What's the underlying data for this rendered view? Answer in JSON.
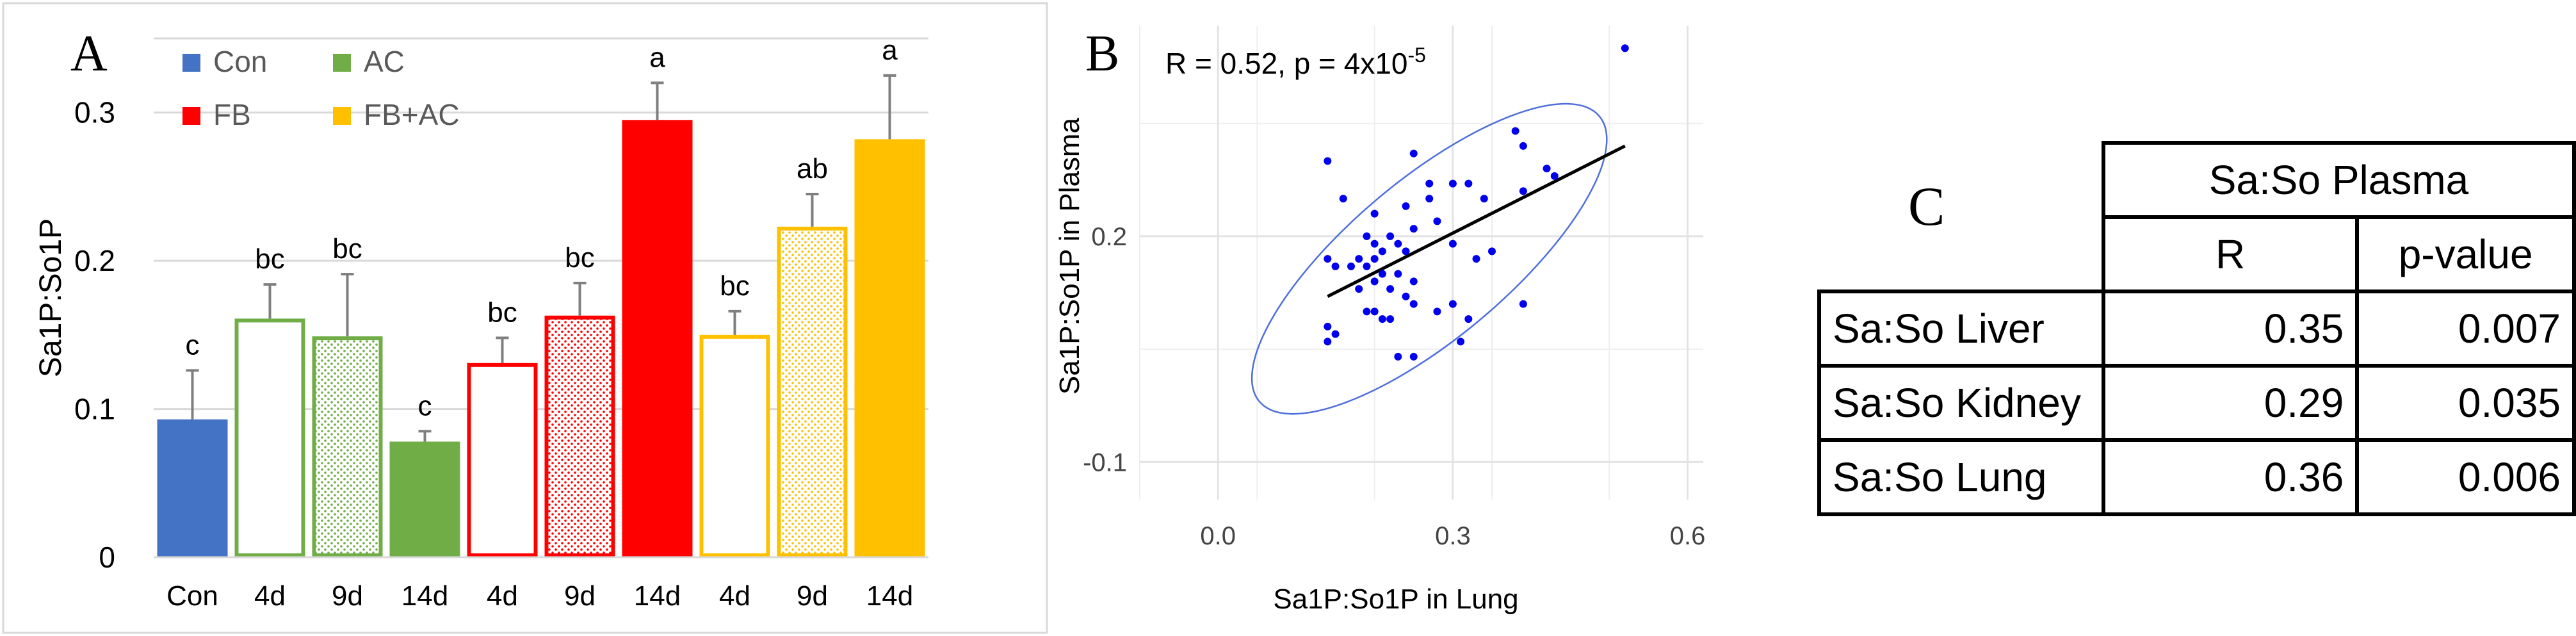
{
  "chart_data": [
    {
      "panel": "A",
      "type": "bar",
      "panel_label": "A",
      "ylabel": "Sa1P:So1P",
      "ylim": [
        0,
        0.35
      ],
      "yticks": [
        0,
        0.1,
        0.2,
        0.3
      ],
      "ytick_labels": [
        "0",
        "0.1",
        "0.2",
        "0.3"
      ],
      "categories": [
        "Con",
        "4d",
        "9d",
        "14d",
        "4d",
        "9d",
        "14d",
        "4d",
        "9d",
        "14d"
      ],
      "values": [
        0.093,
        0.161,
        0.149,
        0.078,
        0.131,
        0.163,
        0.295,
        0.15,
        0.223,
        0.282
      ],
      "errors": [
        0.033,
        0.023,
        0.042,
        0.007,
        0.017,
        0.022,
        0.025,
        0.016,
        0.022,
        0.043
      ],
      "letters": [
        "c",
        "bc",
        "bc",
        "c",
        "bc",
        "bc",
        "a",
        "bc",
        "ab",
        "a"
      ],
      "groups": [
        "Con",
        "AC",
        "AC",
        "AC",
        "FB",
        "FB",
        "FB",
        "FB+AC",
        "FB+AC",
        "FB+AC"
      ],
      "fills": [
        "solid",
        "open",
        "dotted",
        "solid",
        "open",
        "dotted",
        "solid",
        "open",
        "dotted",
        "solid"
      ],
      "legend": [
        {
          "label": "Con",
          "color": "#4472C4"
        },
        {
          "label": "AC",
          "color": "#70AD47"
        },
        {
          "label": "FB",
          "color": "#FF0000"
        },
        {
          "label": "FB+AC",
          "color": "#FFC000"
        }
      ],
      "grid": true,
      "legend_position": "top-left"
    },
    {
      "panel": "B",
      "type": "scatter",
      "panel_label": "B",
      "annotation": "R = 0.52, p = 4x10",
      "annotation_exp": "-5",
      "xlabel": "Sa1P:So1P in Lung",
      "ylabel": "Sa1P:So1P in Plasma",
      "xlim": [
        -0.1,
        0.62
      ],
      "ylim": [
        -0.15,
        0.48
      ],
      "xticks": [
        0.0,
        0.3,
        0.6
      ],
      "xtick_labels": [
        "0.0",
        "0.3",
        "0.6"
      ],
      "yticks": [
        -0.1,
        0.2
      ],
      "ytick_labels": [
        "-0.1",
        "0.2"
      ],
      "points": [
        [
          0.52,
          0.45
        ],
        [
          0.38,
          0.34
        ],
        [
          0.39,
          0.32
        ],
        [
          0.25,
          0.31
        ],
        [
          0.14,
          0.3
        ],
        [
          0.42,
          0.29
        ],
        [
          0.43,
          0.28
        ],
        [
          0.27,
          0.27
        ],
        [
          0.3,
          0.27
        ],
        [
          0.32,
          0.27
        ],
        [
          0.39,
          0.26
        ],
        [
          0.27,
          0.25
        ],
        [
          0.16,
          0.25
        ],
        [
          0.34,
          0.25
        ],
        [
          0.24,
          0.24
        ],
        [
          0.2,
          0.23
        ],
        [
          0.28,
          0.22
        ],
        [
          0.25,
          0.21
        ],
        [
          0.22,
          0.2
        ],
        [
          0.19,
          0.2
        ],
        [
          0.2,
          0.19
        ],
        [
          0.23,
          0.19
        ],
        [
          0.3,
          0.19
        ],
        [
          0.35,
          0.18
        ],
        [
          0.21,
          0.18
        ],
        [
          0.24,
          0.18
        ],
        [
          0.18,
          0.17
        ],
        [
          0.2,
          0.17
        ],
        [
          0.33,
          0.17
        ],
        [
          0.14,
          0.17
        ],
        [
          0.17,
          0.16
        ],
        [
          0.19,
          0.16
        ],
        [
          0.15,
          0.16
        ],
        [
          0.23,
          0.15
        ],
        [
          0.21,
          0.15
        ],
        [
          0.25,
          0.14
        ],
        [
          0.2,
          0.14
        ],
        [
          0.18,
          0.13
        ],
        [
          0.22,
          0.13
        ],
        [
          0.24,
          0.12
        ],
        [
          0.25,
          0.11
        ],
        [
          0.3,
          0.11
        ],
        [
          0.39,
          0.11
        ],
        [
          0.2,
          0.1
        ],
        [
          0.28,
          0.1
        ],
        [
          0.19,
          0.1
        ],
        [
          0.21,
          0.09
        ],
        [
          0.32,
          0.09
        ],
        [
          0.14,
          0.08
        ],
        [
          0.22,
          0.09
        ],
        [
          0.15,
          0.07
        ],
        [
          0.14,
          0.06
        ],
        [
          0.31,
          0.06
        ],
        [
          0.23,
          0.04
        ],
        [
          0.25,
          0.04
        ]
      ],
      "fit_line": [
        [
          0.14,
          0.12
        ],
        [
          0.52,
          0.32
        ]
      ],
      "ellipse": {
        "cx": 0.27,
        "cy": 0.17,
        "rx": 0.27,
        "ry": 0.17,
        "angle_deg": 40
      },
      "point_color": "#0000EE",
      "grid": true
    }
  ],
  "table_c": {
    "panel_label": "C",
    "header_group": "Sa:So Plasma",
    "columns": [
      "R",
      "p-value"
    ],
    "rows": [
      {
        "label": "Sa:So Liver",
        "r": "0.35",
        "p": "0.007"
      },
      {
        "label": "Sa:So Kidney",
        "r": "0.29",
        "p": "0.035"
      },
      {
        "label": "Sa:So Lung",
        "r": "0.36",
        "p": "0.006"
      }
    ]
  }
}
